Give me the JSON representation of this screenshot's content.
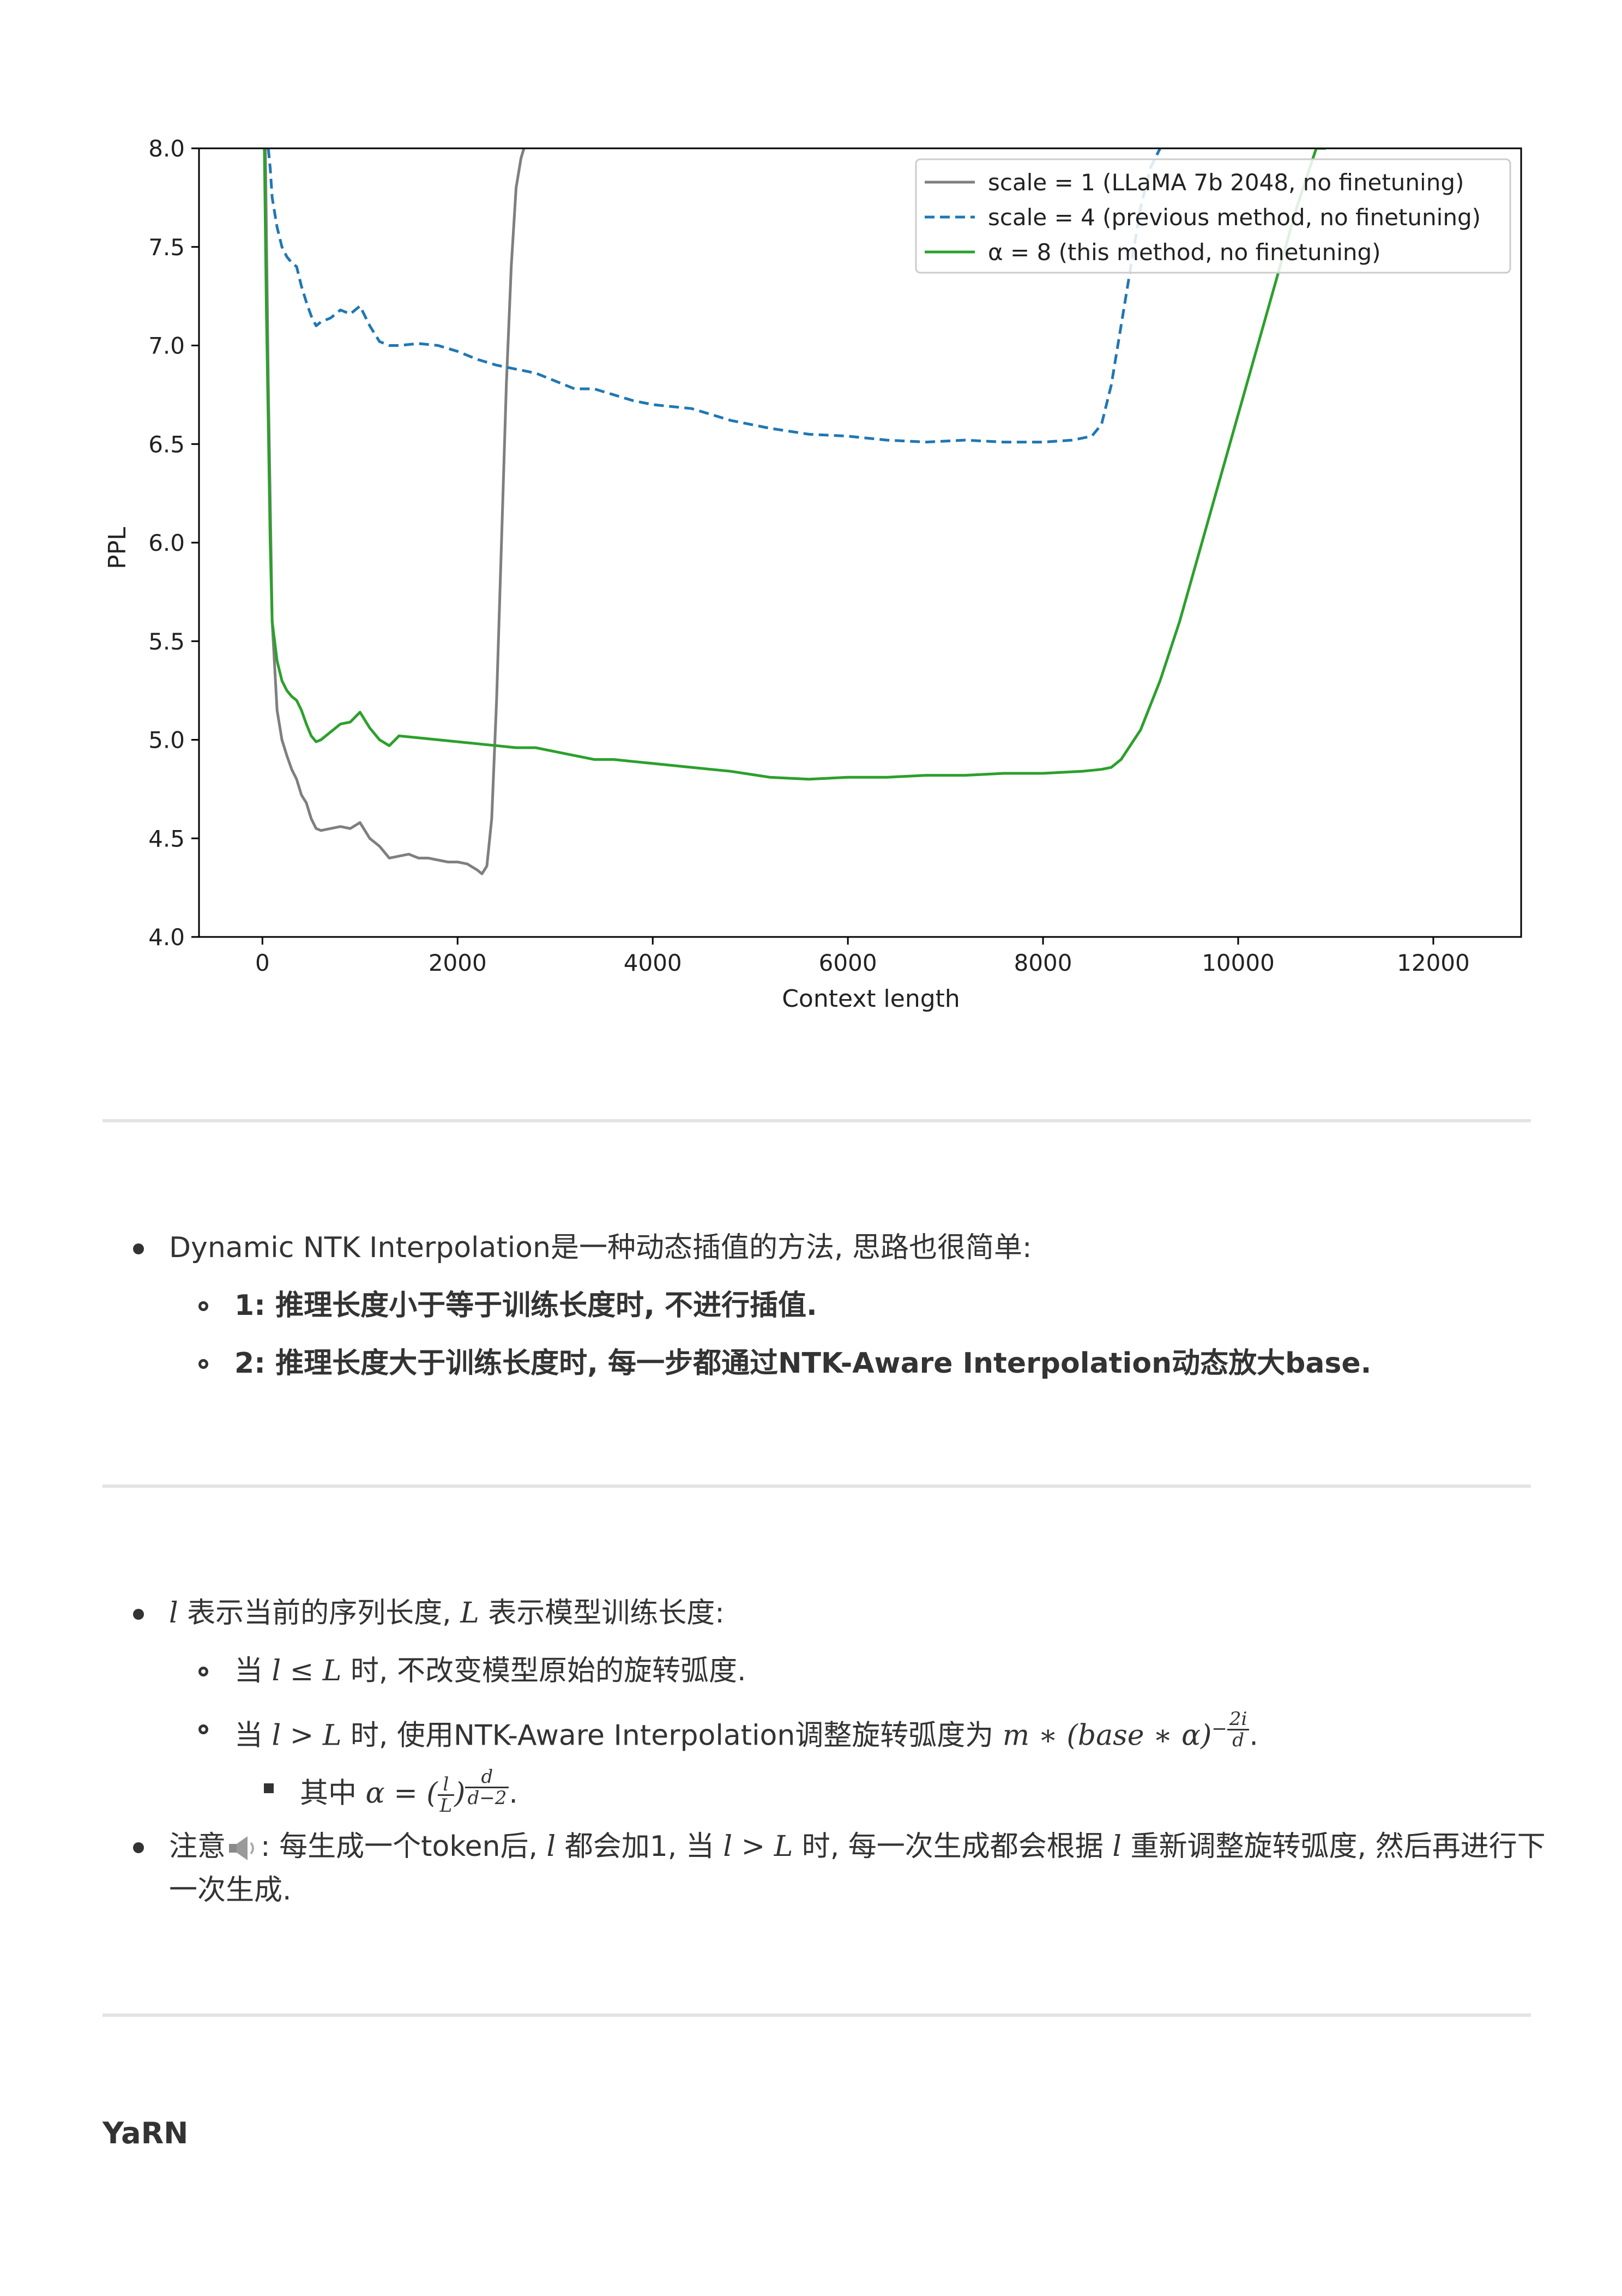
{
  "chart_data": {
    "type": "line",
    "title": "",
    "xlabel": "Context length",
    "ylabel": "PPL",
    "xlim": [
      -650,
      12900
    ],
    "ylim": [
      4.0,
      8.0
    ],
    "xticks": [
      0,
      2000,
      4000,
      6000,
      8000,
      10000,
      12000
    ],
    "yticks": [
      4.0,
      4.5,
      5.0,
      5.5,
      6.0,
      6.5,
      7.0,
      7.5,
      8.0
    ],
    "xtick_labels": [
      "0",
      "2000",
      "4000",
      "6000",
      "8000",
      "10000",
      "12000"
    ],
    "ytick_labels": [
      "4.0",
      "4.5",
      "5.0",
      "5.5",
      "6.0",
      "6.5",
      "7.0",
      "7.5",
      "8.0"
    ],
    "grid": false,
    "legend_position": "top-right",
    "series": [
      {
        "name": "scale = 1 (LLaMA 7b 2048, no finetuning)",
        "color": "#7f7f7f",
        "dash": "solid",
        "x": [
          30,
          60,
          100,
          150,
          200,
          250,
          300,
          350,
          400,
          450,
          500,
          550,
          600,
          700,
          800,
          900,
          1000,
          1100,
          1200,
          1300,
          1400,
          1500,
          1600,
          1700,
          1800,
          1900,
          2000,
          2100,
          2200,
          2250,
          2300,
          2350,
          2400,
          2450,
          2500,
          2550,
          2600,
          2650,
          2680
        ],
        "y": [
          8.0,
          6.8,
          5.6,
          5.15,
          5.0,
          4.92,
          4.85,
          4.8,
          4.72,
          4.68,
          4.6,
          4.55,
          4.54,
          4.55,
          4.56,
          4.55,
          4.58,
          4.5,
          4.46,
          4.4,
          4.41,
          4.42,
          4.4,
          4.4,
          4.39,
          4.38,
          4.38,
          4.37,
          4.34,
          4.32,
          4.36,
          4.6,
          5.2,
          6.0,
          6.8,
          7.4,
          7.8,
          7.95,
          8.0
        ]
      },
      {
        "name": "scale = 4 (previous method, no finetuning)",
        "color": "#1f77b4",
        "dash": "dashed",
        "x": [
          60,
          80,
          100,
          150,
          200,
          250,
          300,
          350,
          400,
          450,
          500,
          550,
          600,
          700,
          800,
          900,
          1000,
          1100,
          1200,
          1300,
          1400,
          1600,
          1800,
          2000,
          2200,
          2400,
          2600,
          2800,
          3000,
          3200,
          3400,
          3600,
          3800,
          4000,
          4400,
          4800,
          5200,
          5600,
          6000,
          6400,
          6800,
          7200,
          7600,
          8000,
          8300,
          8500,
          8600,
          8700,
          8800,
          8900,
          9000,
          9100,
          9200
        ],
        "y": [
          8.0,
          7.9,
          7.75,
          7.6,
          7.5,
          7.45,
          7.42,
          7.4,
          7.3,
          7.22,
          7.15,
          7.1,
          7.12,
          7.14,
          7.18,
          7.16,
          7.2,
          7.1,
          7.02,
          7.0,
          7.0,
          7.01,
          7.0,
          6.97,
          6.93,
          6.9,
          6.88,
          6.86,
          6.82,
          6.78,
          6.78,
          6.75,
          6.72,
          6.7,
          6.68,
          6.62,
          6.58,
          6.55,
          6.54,
          6.52,
          6.51,
          6.52,
          6.51,
          6.51,
          6.52,
          6.54,
          6.6,
          6.8,
          7.1,
          7.4,
          7.7,
          7.9,
          8.0
        ]
      },
      {
        "name": "α = 8 (this method, no finetuning)",
        "color": "#2ca02c",
        "dash": "solid",
        "x": [
          20,
          40,
          60,
          80,
          100,
          150,
          200,
          250,
          300,
          350,
          400,
          450,
          500,
          550,
          600,
          700,
          800,
          900,
          1000,
          1100,
          1200,
          1300,
          1400,
          1600,
          1800,
          2000,
          2200,
          2400,
          2600,
          2800,
          3000,
          3200,
          3400,
          3600,
          3800,
          4000,
          4400,
          4800,
          5200,
          5600,
          6000,
          6400,
          6800,
          7200,
          7600,
          8000,
          8400,
          8600,
          8700,
          8800,
          9000,
          9200,
          9400,
          9600,
          9800,
          10000,
          10200,
          10400,
          10600,
          10800,
          10900
        ],
        "y": [
          8.0,
          7.2,
          6.6,
          6.0,
          5.6,
          5.4,
          5.3,
          5.25,
          5.22,
          5.2,
          5.15,
          5.08,
          5.02,
          4.99,
          5.0,
          5.04,
          5.08,
          5.09,
          5.14,
          5.06,
          5.0,
          4.97,
          5.02,
          5.01,
          5.0,
          4.99,
          4.98,
          4.97,
          4.96,
          4.96,
          4.94,
          4.92,
          4.9,
          4.9,
          4.89,
          4.88,
          4.86,
          4.84,
          4.81,
          4.8,
          4.81,
          4.81,
          4.82,
          4.82,
          4.83,
          4.83,
          4.84,
          4.85,
          4.86,
          4.9,
          5.05,
          5.3,
          5.6,
          5.95,
          6.3,
          6.65,
          7.0,
          7.35,
          7.7,
          8.0,
          8.0
        ]
      }
    ]
  },
  "section1": {
    "item": "Dynamic NTK Interpolation是一种动态插值的方法, 思路也很简单:",
    "sub1": "1: 推理长度小于等于训练长度时, 不进行插值.",
    "sub2": "2: 推理长度大于训练长度时, 每一步都通过NTK-Aware Interpolation动态放大base."
  },
  "section2": {
    "item1_text1": "表示当前的序列长度,",
    "item1_text2": "表示模型训练长度:",
    "sub1_pre": "当",
    "sub1_post": "时, 不改变模型原始的旋转弧度.",
    "sub2_pre": "当",
    "sub2_mid": "时, 使用NTK-Aware Interpolation调整旋转弧度为",
    "sub3_pre": "其中",
    "item2_pre": "注意",
    "item2_a": ": 每生成一个token后,",
    "item2_b": "都会加1, 当",
    "item2_c": "时, 每一次生成都会根据",
    "item2_d": "重新调整旋转弧度, 然后再进行下",
    "item2_line2": "一次生成."
  },
  "math": {
    "l": "l",
    "L": "L",
    "le": "≤",
    "gt": ">",
    "formula_main": "m ∗ (base ∗ α)",
    "exp_num": "2i",
    "exp_den": "d",
    "alpha_eq": "α = (",
    "frac_n": "l",
    "frac_d": "L",
    "close": ")",
    "pow_num": "d",
    "pow_den": "d−2",
    "minus": "−",
    "dot": "."
  },
  "heading": "YaRN"
}
